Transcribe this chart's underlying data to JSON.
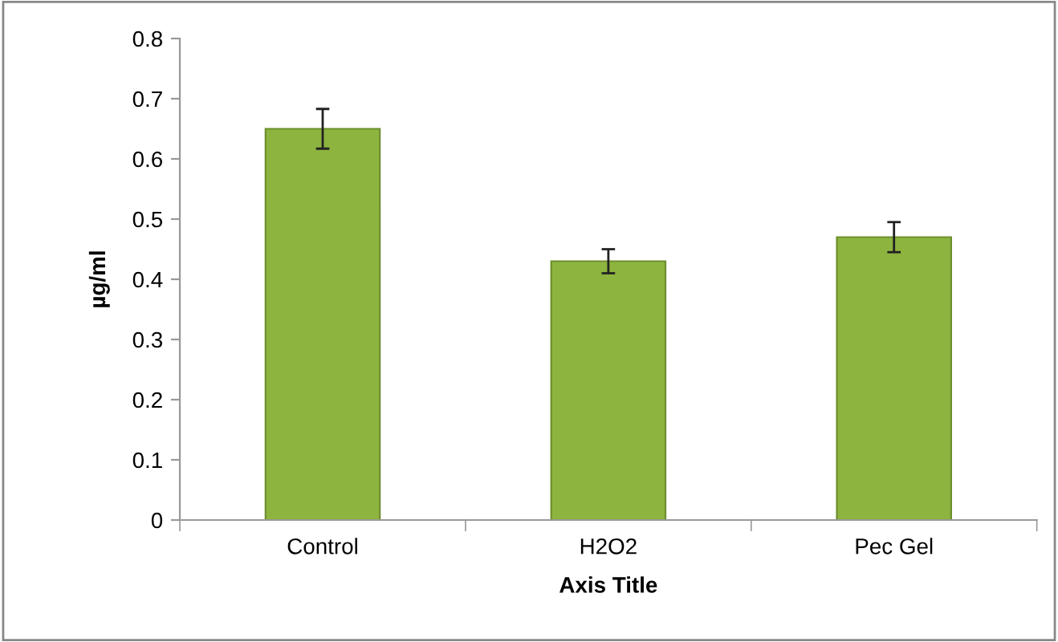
{
  "chart_data": {
    "type": "bar",
    "xlabel": "Axis Title",
    "ylabel": "µg/ml",
    "categories": [
      "Control",
      "H2O2",
      "Pec Gel"
    ],
    "series": [
      {
        "color": "#8db43f",
        "values": [
          0.65,
          0.43,
          0.47
        ],
        "errors": [
          0.033,
          0.02,
          0.025
        ]
      }
    ],
    "ylim": [
      0,
      0.8
    ],
    "yticks": [
      0,
      0.1,
      0.2,
      0.3,
      0.4,
      0.5,
      0.6,
      0.7,
      0.8
    ],
    "grid": false
  }
}
